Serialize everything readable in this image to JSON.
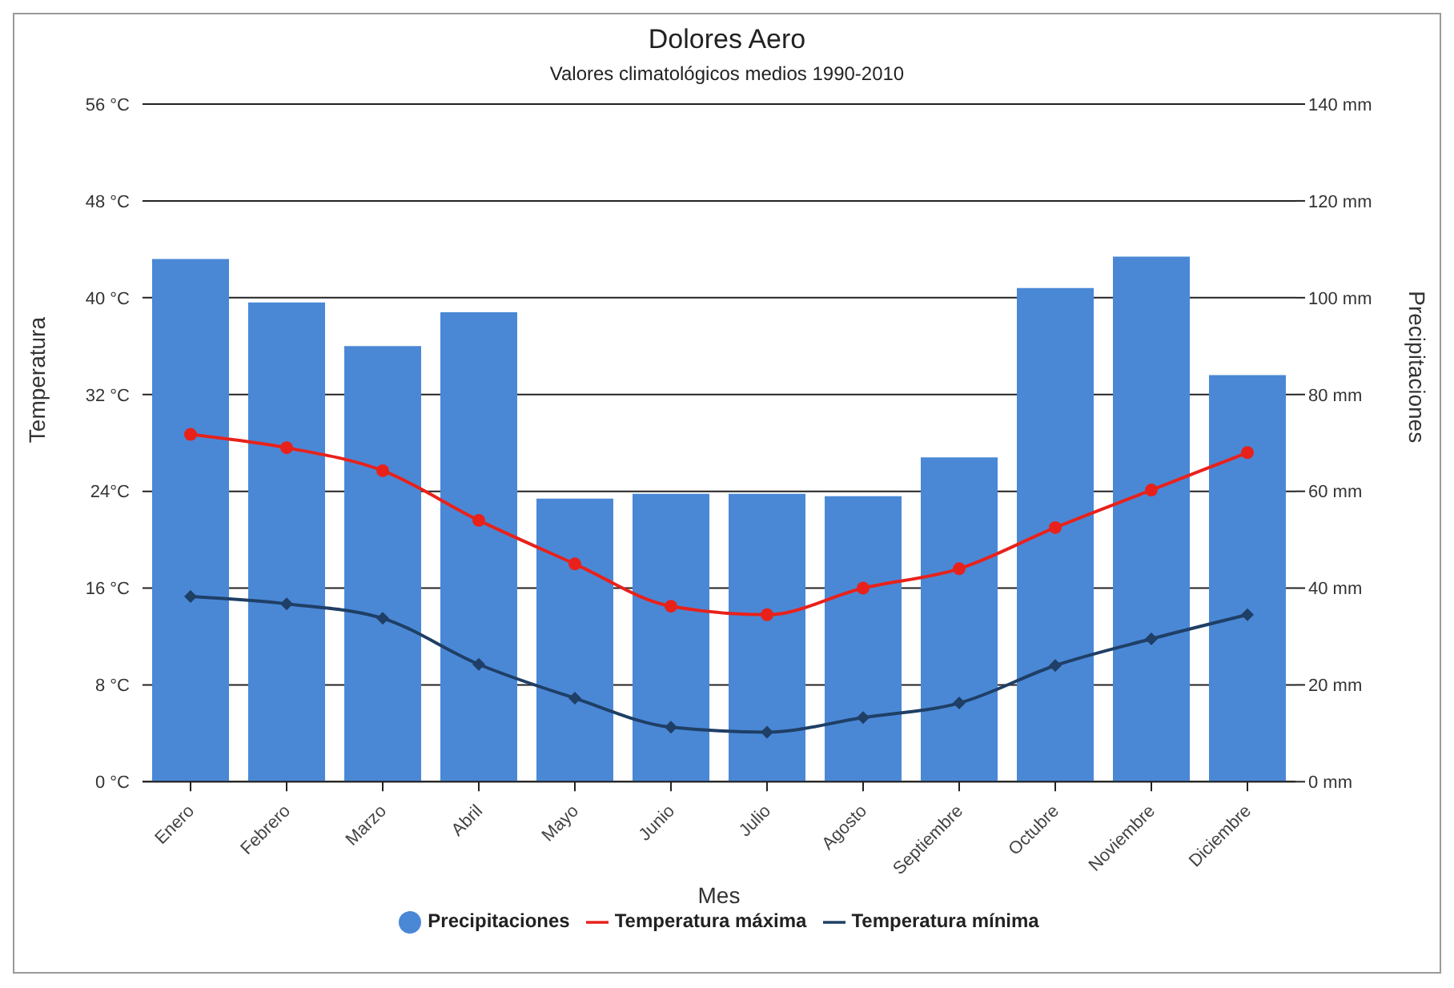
{
  "chart_data": {
    "type": "bar",
    "title": "Dolores Aero",
    "subtitle": "Valores climatológicos medios 1990-2010",
    "xlabel": "Mes",
    "ylabel": "Temperatura",
    "y2label": "Precipitaciones",
    "categories": [
      "Enero",
      "Febrero",
      "Marzo",
      "Abril",
      "Mayo",
      "Junio",
      "Julio",
      "Agosto",
      "Septiembre",
      "Octubre",
      "Noviembre",
      "Diciembre"
    ],
    "series": [
      {
        "name": "Precipitaciones",
        "axis": "y2",
        "color": "#4a88d6",
        "values": [
          108,
          99,
          90,
          97,
          58.5,
          59.5,
          59.5,
          59,
          67,
          102,
          108.5,
          84
        ]
      },
      {
        "name": "Temperatura máxima",
        "type": "line",
        "marker": "circle",
        "color": "#e8221b",
        "values": [
          28.7,
          27.6,
          25.7,
          21.6,
          18.0,
          14.5,
          13.8,
          16.0,
          17.6,
          21.0,
          24.1,
          27.2
        ]
      },
      {
        "name": "Temperatura mínima",
        "type": "line",
        "marker": "diamond",
        "color": "#1f3f66",
        "values": [
          15.3,
          14.7,
          13.5,
          9.7,
          6.9,
          4.5,
          4.1,
          5.3,
          6.5,
          9.6,
          11.8,
          13.8
        ]
      }
    ],
    "ylim": [
      0,
      56
    ],
    "yticks": [
      {
        "value": 0,
        "label": "0 °C"
      },
      {
        "value": 8,
        "label": "8 °C"
      },
      {
        "value": 16,
        "label": "16 °C"
      },
      {
        "value": 24,
        "label": "24°C"
      },
      {
        "value": 32,
        "label": "32 °C"
      },
      {
        "value": 40,
        "label": "40 °C"
      },
      {
        "value": 48,
        "label": "48 °C"
      },
      {
        "value": 56,
        "label": "56 °C"
      }
    ],
    "y2lim": [
      0,
      140
    ],
    "y2ticks": [
      {
        "value": 0,
        "label": "0 mm"
      },
      {
        "value": 20,
        "label": "20 mm"
      },
      {
        "value": 40,
        "label": "40 mm"
      },
      {
        "value": 60,
        "label": "60 mm"
      },
      {
        "value": 80,
        "label": "80 mm"
      },
      {
        "value": 100,
        "label": "100 mm"
      },
      {
        "value": 120,
        "label": "120 mm"
      },
      {
        "value": 140,
        "label": "140 mm"
      }
    ],
    "grid": "y",
    "legend": "bottom",
    "line_style": "solid"
  }
}
